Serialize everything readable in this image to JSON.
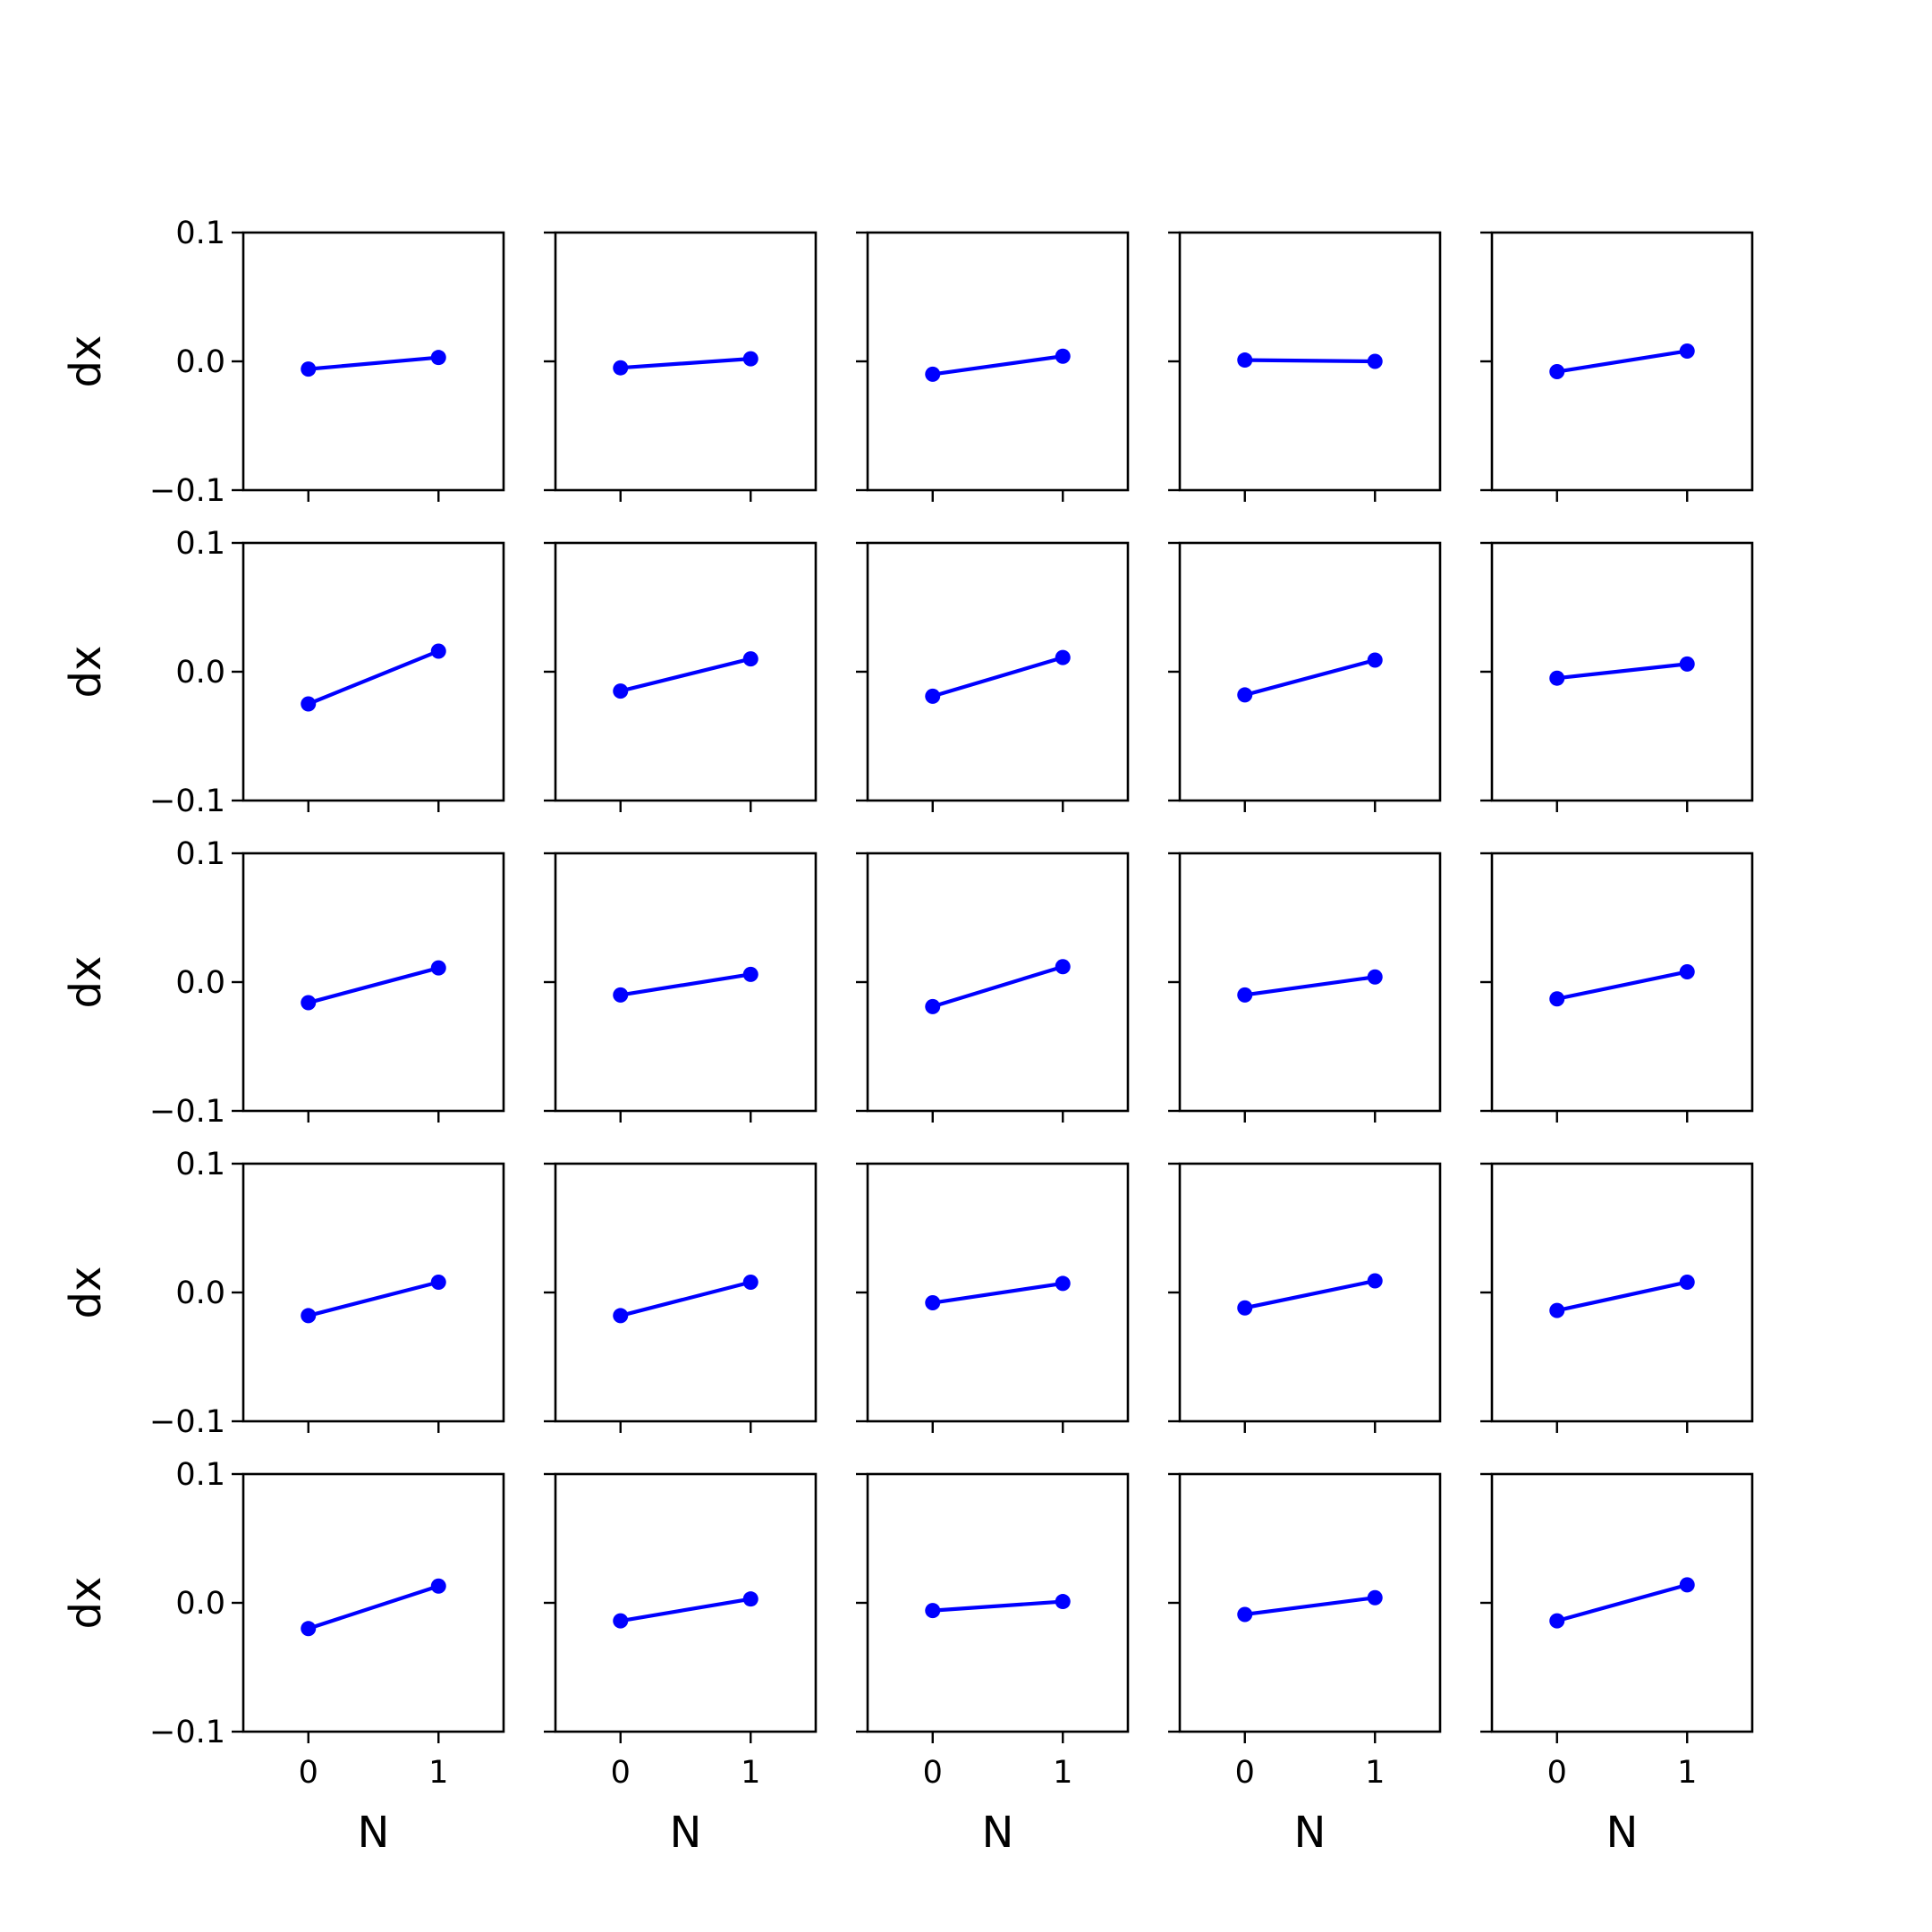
{
  "chart_data": {
    "type": "line",
    "layout": "grid",
    "rows": 5,
    "cols": 5,
    "xlabel": "N",
    "ylabel": "dx",
    "xlim": [
      -0.5,
      1.5
    ],
    "ylim": [
      -0.1,
      0.1
    ],
    "xticks": [
      0,
      1
    ],
    "xtick_labels": [
      "0",
      "1"
    ],
    "yticks": [
      -0.1,
      0.0,
      0.1
    ],
    "ytick_labels": [
      "−0.1",
      "0.0",
      "0.1"
    ],
    "x": [
      0,
      1
    ],
    "line_color": "#0000ff",
    "grid": false,
    "panels": [
      [
        {
          "y": [
            -0.006,
            0.003
          ]
        },
        {
          "y": [
            -0.005,
            0.002
          ]
        },
        {
          "y": [
            -0.01,
            0.004
          ]
        },
        {
          "y": [
            0.001,
            0.0
          ]
        },
        {
          "y": [
            -0.008,
            0.008
          ]
        }
      ],
      [
        {
          "y": [
            -0.025,
            0.016
          ]
        },
        {
          "y": [
            -0.015,
            0.01
          ]
        },
        {
          "y": [
            -0.019,
            0.011
          ]
        },
        {
          "y": [
            -0.018,
            0.009
          ]
        },
        {
          "y": [
            -0.005,
            0.006
          ]
        }
      ],
      [
        {
          "y": [
            -0.016,
            0.011
          ]
        },
        {
          "y": [
            -0.01,
            0.006
          ]
        },
        {
          "y": [
            -0.019,
            0.012
          ]
        },
        {
          "y": [
            -0.01,
            0.004
          ]
        },
        {
          "y": [
            -0.013,
            0.008
          ]
        }
      ],
      [
        {
          "y": [
            -0.018,
            0.008
          ]
        },
        {
          "y": [
            -0.018,
            0.008
          ]
        },
        {
          "y": [
            -0.008,
            0.007
          ]
        },
        {
          "y": [
            -0.012,
            0.009
          ]
        },
        {
          "y": [
            -0.014,
            0.008
          ]
        }
      ],
      [
        {
          "y": [
            -0.02,
            0.013
          ]
        },
        {
          "y": [
            -0.014,
            0.003
          ]
        },
        {
          "y": [
            -0.006,
            0.001
          ]
        },
        {
          "y": [
            -0.009,
            0.004
          ]
        },
        {
          "y": [
            -0.014,
            0.014
          ]
        }
      ]
    ]
  }
}
